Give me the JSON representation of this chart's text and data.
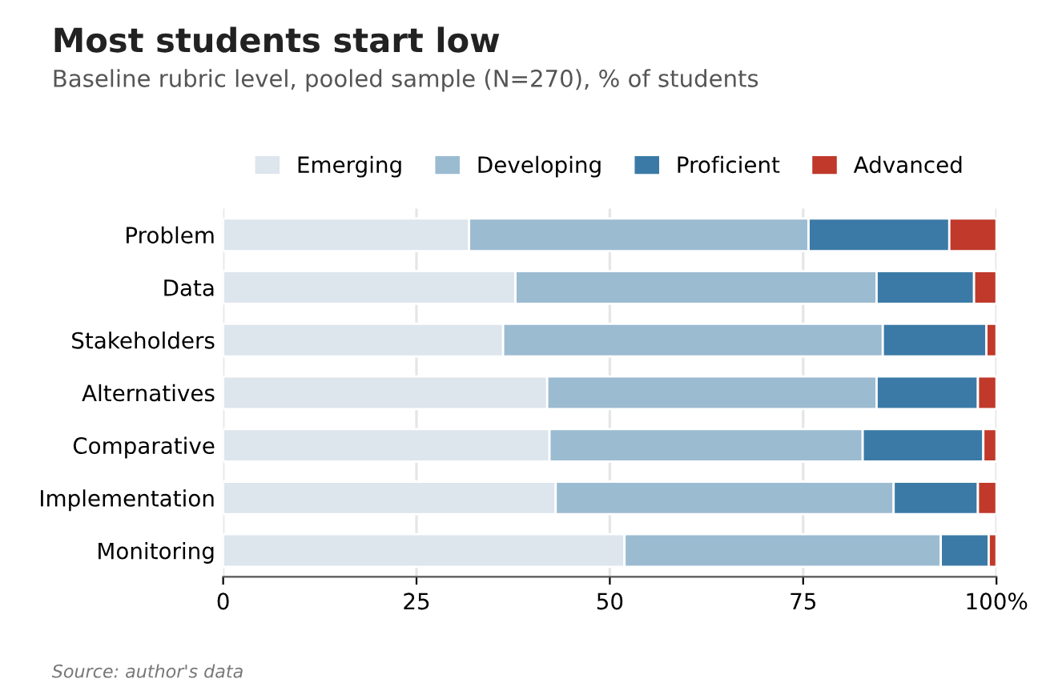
{
  "chart_data": {
    "type": "bar",
    "orientation": "horizontal",
    "stacked": true,
    "title": "Most students start low",
    "subtitle": "Baseline rubric level, pooled sample (N=270), % of students",
    "categories": [
      "Problem",
      "Data",
      "Stakeholders",
      "Alternatives",
      "Comparative",
      "Implementation",
      "Monitoring"
    ],
    "series": [
      {
        "name": "Emerging",
        "color": "#dde5ed",
        "values": [
          31.8,
          37.8,
          36.2,
          41.9,
          42.2,
          43.0,
          51.9
        ]
      },
      {
        "name": "Developing",
        "color": "#9bbbd1",
        "values": [
          43.9,
          46.7,
          49.1,
          42.6,
          40.5,
          43.7,
          40.9
        ]
      },
      {
        "name": "Proficient",
        "color": "#3b7aa6",
        "values": [
          18.2,
          12.6,
          13.4,
          13.1,
          15.6,
          10.9,
          6.2
        ]
      },
      {
        "name": "Advanced",
        "color": "#c0392b",
        "values": [
          6.1,
          2.9,
          1.3,
          2.4,
          1.7,
          2.4,
          1.0
        ]
      }
    ],
    "xlim": [
      0,
      100
    ],
    "xticks": [
      0,
      25,
      50,
      75,
      {
        "value": 100,
        "label": "100%"
      }
    ],
    "grid": "x",
    "legend": "top",
    "annotations": [
      "Source: author's data"
    ]
  }
}
